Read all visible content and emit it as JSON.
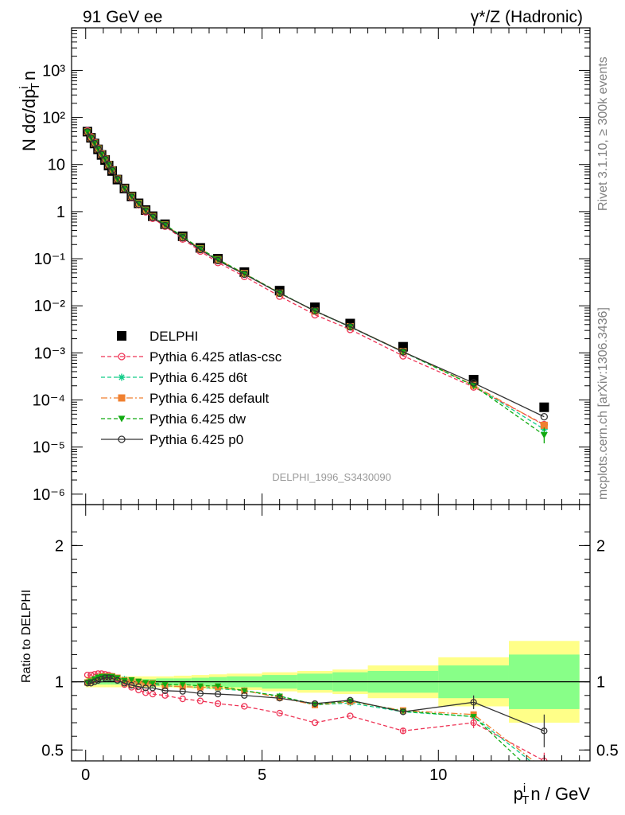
{
  "header": {
    "left": "91 GeV ee",
    "right": "γ*/Z (Hadronic)"
  },
  "side_labels": {
    "rivet": "Rivet 3.1.10, ≥ 300k events",
    "mcplots": "mcplots.cern.ch [arXiv:1306.3436]"
  },
  "watermark": "DELPHI_1996_S3430090",
  "chart_data": [
    {
      "type": "scatter",
      "panel": "main",
      "ylabel": "N dσ/dp_T^i n",
      "yscale": "log",
      "ylim": [
        6e-07,
        8000
      ],
      "xlim": [
        -0.4,
        14.3
      ],
      "yticks": [
        "10⁻⁶",
        "10⁻⁵",
        "10⁻⁴",
        "10⁻³",
        "10⁻²",
        "10⁻¹",
        "1",
        "10",
        "10²",
        "10³"
      ],
      "legend_position": "lower-left",
      "x": [
        0.05,
        0.15,
        0.25,
        0.35,
        0.45,
        0.55,
        0.65,
        0.75,
        0.9,
        1.1,
        1.3,
        1.5,
        1.7,
        1.9,
        2.25,
        2.75,
        3.25,
        3.75,
        4.5,
        5.5,
        6.5,
        7.5,
        9.0,
        11.0,
        13.0
      ],
      "series": [
        {
          "name": "DELPHI",
          "color": "#000000",
          "marker": "square",
          "values": [
            50,
            37,
            28,
            21,
            16,
            12.5,
            9.5,
            7.3,
            4.8,
            3.1,
            2.1,
            1.5,
            1.08,
            0.8,
            0.54,
            0.3,
            0.17,
            0.1,
            0.052,
            0.021,
            0.0093,
            0.0042,
            0.00135,
            0.00027,
            7e-05
          ]
        },
        {
          "name": "Pythia 6.425 atlas-csc",
          "color": "#ee3355",
          "marker": "open-circle",
          "values": [
            52,
            39,
            29.5,
            22.2,
            17.0,
            13.2,
            10.0,
            7.65,
            4.9,
            3.05,
            2.0,
            1.4,
            0.99,
            0.72,
            0.49,
            0.262,
            0.145,
            0.083,
            0.042,
            0.016,
            0.00645,
            0.00315,
            0.000865,
            0.000189,
            3e-05
          ]
        },
        {
          "name": "Pythia 6.425 d6t",
          "color": "#11cc88",
          "marker": "asterisk",
          "values": [
            50,
            37.3,
            28.5,
            21.5,
            16.5,
            13.0,
            9.9,
            7.6,
            4.95,
            3.14,
            2.12,
            1.5,
            1.07,
            0.78,
            0.525,
            0.29,
            0.163,
            0.095,
            0.0485,
            0.0188,
            0.0077,
            0.00355,
            0.00105,
            0.000201,
            2.4e-05
          ]
        },
        {
          "name": "Pythia 6.425 default",
          "color": "#f08030",
          "marker": "square",
          "values": [
            49.8,
            37.2,
            28.4,
            21.6,
            16.6,
            13.0,
            9.9,
            7.6,
            4.93,
            3.13,
            2.12,
            1.5,
            1.07,
            0.79,
            0.525,
            0.29,
            0.163,
            0.096,
            0.0487,
            0.0186,
            0.0077,
            0.0036,
            0.00107,
            0.000205,
            2.9e-05
          ]
        },
        {
          "name": "Pythia 6.425 dw",
          "color": "#11aa11",
          "marker": "triangle-down",
          "values": [
            49.8,
            37.3,
            28.6,
            21.7,
            16.6,
            13.0,
            9.9,
            7.6,
            4.92,
            3.13,
            2.13,
            1.51,
            1.08,
            0.79,
            0.53,
            0.295,
            0.165,
            0.097,
            0.0485,
            0.0188,
            0.0078,
            0.0036,
            0.00106,
            0.000202,
            1.8e-05
          ]
        },
        {
          "name": "Pythia 6.425 p0",
          "color": "#333333",
          "marker": "open-circle",
          "values": [
            49.5,
            36.5,
            28.0,
            21.3,
            16.4,
            12.9,
            9.8,
            7.5,
            4.85,
            3.06,
            2.04,
            1.43,
            1.03,
            0.76,
            0.505,
            0.279,
            0.156,
            0.091,
            0.0468,
            0.0185,
            0.0078,
            0.0036,
            0.00105,
            0.00023,
            4.4e-05
          ]
        }
      ]
    },
    {
      "type": "line",
      "panel": "ratio",
      "ylabel": "Ratio to DELPHI",
      "xlabel": "p_T^i n / GeV",
      "ylim": [
        0.42,
        2.3
      ],
      "xlim": [
        -0.4,
        14.3
      ],
      "xticks": [
        "0",
        "5",
        "10"
      ],
      "yticks": [
        "0.5",
        "1",
        "2"
      ],
      "x": [
        0.05,
        0.15,
        0.25,
        0.35,
        0.45,
        0.55,
        0.65,
        0.75,
        0.9,
        1.1,
        1.3,
        1.5,
        1.7,
        1.9,
        2.25,
        2.75,
        3.25,
        3.75,
        4.5,
        5.5,
        6.5,
        7.5,
        9.0,
        11.0,
        13.0
      ],
      "bands": {
        "edges": [
          0,
          0.1,
          0.2,
          0.3,
          0.4,
          0.5,
          0.6,
          0.7,
          0.8,
          1.0,
          1.2,
          1.4,
          1.6,
          1.8,
          2.0,
          2.5,
          3.0,
          3.5,
          4.0,
          5.0,
          6.0,
          7.0,
          8.0,
          10.0,
          12.0,
          14.0
        ],
        "stat_syst": [
          0.04,
          0.04,
          0.04,
          0.04,
          0.04,
          0.04,
          0.04,
          0.04,
          0.04,
          0.04,
          0.04,
          0.04,
          0.04,
          0.04,
          0.04,
          0.045,
          0.05,
          0.055,
          0.06,
          0.07,
          0.08,
          0.09,
          0.12,
          0.18,
          0.3
        ],
        "stat": [
          0.02,
          0.02,
          0.02,
          0.02,
          0.02,
          0.02,
          0.02,
          0.02,
          0.02,
          0.02,
          0.02,
          0.02,
          0.02,
          0.02,
          0.025,
          0.025,
          0.03,
          0.035,
          0.04,
          0.05,
          0.06,
          0.07,
          0.08,
          0.12,
          0.2
        ],
        "colors": {
          "outer": "#ffff88",
          "inner": "#88ff88"
        }
      },
      "series": [
        {
          "name": "Pythia 6.425 atlas-csc",
          "color": "#ee3355",
          "values": [
            1.05,
            1.05,
            1.055,
            1.06,
            1.06,
            1.055,
            1.05,
            1.04,
            1.02,
            0.98,
            0.96,
            0.94,
            0.92,
            0.91,
            0.9,
            0.875,
            0.86,
            0.84,
            0.82,
            0.77,
            0.7,
            0.75,
            0.64,
            0.7,
            0.42
          ]
        },
        {
          "name": "Pythia 6.425 d6t",
          "color": "#11cc88",
          "values": [
            1.0,
            1.01,
            1.02,
            1.03,
            1.04,
            1.04,
            1.04,
            1.04,
            1.03,
            1.02,
            1.01,
            1.0,
            0.99,
            0.98,
            0.97,
            0.965,
            0.96,
            0.95,
            0.935,
            0.895,
            0.83,
            0.845,
            0.78,
            0.745,
            0.34
          ]
        },
        {
          "name": "Pythia 6.425 default",
          "color": "#f08030",
          "values": [
            0.995,
            1.005,
            1.015,
            1.03,
            1.04,
            1.04,
            1.04,
            1.04,
            1.03,
            1.01,
            1.01,
            1.0,
            0.99,
            0.99,
            0.97,
            0.965,
            0.96,
            0.96,
            0.935,
            0.885,
            0.83,
            0.855,
            0.79,
            0.76,
            0.36
          ]
        },
        {
          "name": "Pythia 6.425 dw",
          "color": "#11aa11",
          "values": [
            0.995,
            1.005,
            1.02,
            1.035,
            1.04,
            1.04,
            1.04,
            1.04,
            1.03,
            1.01,
            1.015,
            1.005,
            0.995,
            0.99,
            0.98,
            0.98,
            0.97,
            0.97,
            0.935,
            0.895,
            0.835,
            0.86,
            0.785,
            0.745,
            0.26
          ]
        },
        {
          "name": "Pythia 6.425 p0",
          "color": "#333333",
          "values": [
            0.99,
            0.99,
            1.0,
            1.01,
            1.02,
            1.03,
            1.03,
            1.025,
            1.01,
            0.99,
            0.975,
            0.965,
            0.955,
            0.955,
            0.935,
            0.93,
            0.915,
            0.91,
            0.9,
            0.88,
            0.84,
            0.865,
            0.78,
            0.85,
            0.64
          ]
        }
      ]
    }
  ]
}
